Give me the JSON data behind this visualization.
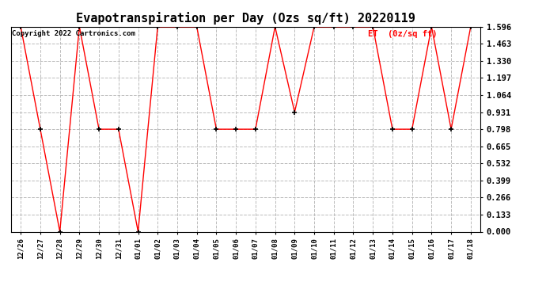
{
  "title": "Evapotranspiration per Day (Ozs sq/ft) 20220119",
  "legend_label": "ET  (0z/sq ft)",
  "copyright": "Copyright 2022 Cartronics.com",
  "x_labels": [
    "12/26",
    "12/27",
    "12/28",
    "12/29",
    "12/30",
    "12/31",
    "01/01",
    "01/02",
    "01/03",
    "01/04",
    "01/05",
    "01/06",
    "01/07",
    "01/08",
    "01/09",
    "01/10",
    "01/11",
    "01/12",
    "01/13",
    "01/14",
    "01/15",
    "01/16",
    "01/17",
    "01/18"
  ],
  "y_values": [
    1.596,
    0.798,
    0.0,
    1.596,
    0.798,
    0.798,
    0.0,
    1.596,
    1.596,
    1.596,
    0.798,
    0.798,
    0.798,
    1.596,
    0.931,
    1.596,
    1.596,
    1.596,
    1.596,
    0.798,
    0.798,
    1.596,
    0.798,
    1.596
  ],
  "ylim": [
    0.0,
    1.596
  ],
  "yticks": [
    0.0,
    0.133,
    0.266,
    0.399,
    0.532,
    0.665,
    0.798,
    0.931,
    1.064,
    1.197,
    1.33,
    1.463,
    1.596
  ],
  "line_color": "red",
  "marker_color": "black",
  "background_color": "#ffffff",
  "grid_color": "#bbbbbb",
  "title_fontsize": 11,
  "tick_fontsize": 6.5,
  "ytick_fontsize": 7.5,
  "legend_color": "red",
  "legend_fontsize": 7.5,
  "copyright_color": "black",
  "copyright_fontsize": 6.5
}
